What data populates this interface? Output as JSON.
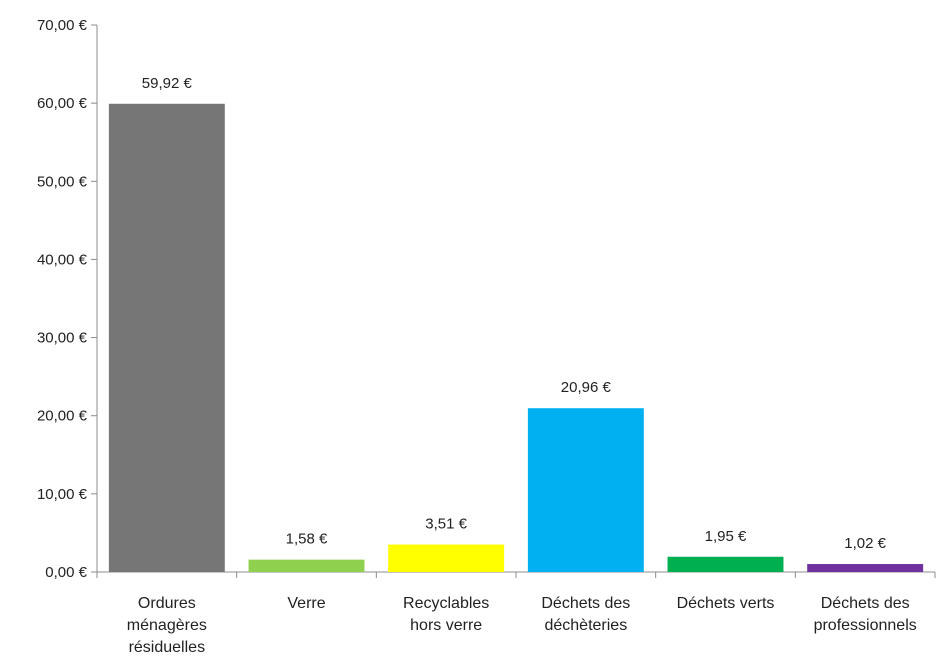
{
  "chart_data": {
    "type": "bar",
    "title": "",
    "xlabel": "",
    "ylabel": "",
    "ylim": [
      0,
      70
    ],
    "yticks": [
      0,
      10,
      20,
      30,
      40,
      50,
      60,
      70
    ],
    "ytick_labels": [
      "0,00 €",
      "10,00 €",
      "20,00 €",
      "30,00 €",
      "40,00 €",
      "50,00 €",
      "60,00 €",
      "70,00 €"
    ],
    "grid": false,
    "legend": "none",
    "categories": [
      [
        "Ordures",
        "ménagères",
        "résiduelles"
      ],
      [
        "Verre"
      ],
      [
        "Recyclables",
        "hors verre"
      ],
      [
        "Déchets des",
        "déchèteries"
      ],
      [
        "Déchets verts"
      ],
      [
        "Déchets des",
        "professionnels"
      ]
    ],
    "values": [
      59.92,
      1.58,
      3.51,
      20.96,
      1.95,
      1.02
    ],
    "value_labels": [
      "59,92 €",
      "1,58 €",
      "3,51 €",
      "20,96 €",
      "1,95 €",
      "1,02 €"
    ],
    "colors": [
      "#767676",
      "#8fd14f",
      "#ffff00",
      "#00b0f0",
      "#00b050",
      "#7030a0"
    ]
  }
}
